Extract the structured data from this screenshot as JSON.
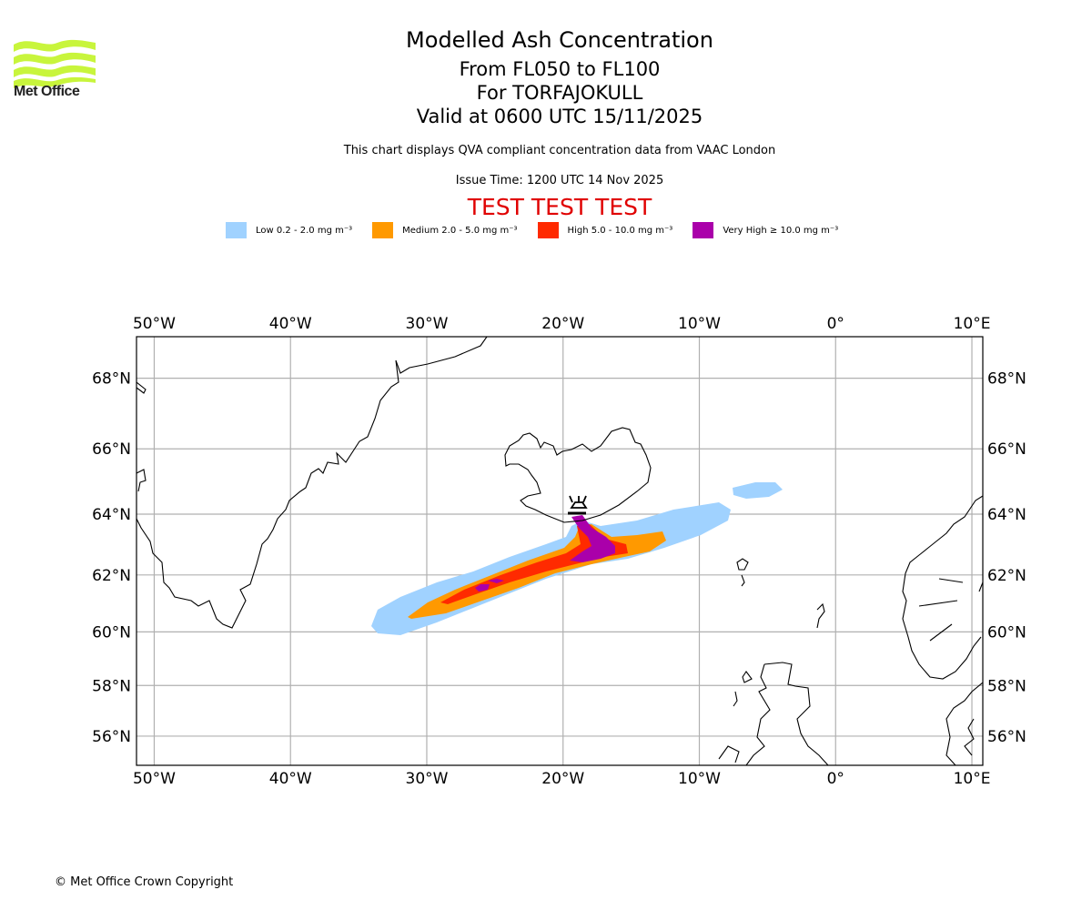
{
  "logo": {
    "text": "Met Office",
    "color": "#c8f53c"
  },
  "title": {
    "line1": "Modelled Ash Concentration",
    "line2": "From FL050 to FL100",
    "line3": "For TORFAJOKULL",
    "line4": "Valid at 0600 UTC 15/11/2025"
  },
  "subtitle": {
    "description": "This chart displays QVA compliant concentration data from VAAC London",
    "issue_time": "Issue Time: 1200 UTC 14 Nov 2025",
    "test_banner": "TEST TEST TEST",
    "test_color": "#e00000"
  },
  "legend": [
    {
      "label": "Low 0.2 - 2.0 mg m⁻³",
      "color": "#a0d2ff"
    },
    {
      "label": "Medium 2.0 - 5.0 mg m⁻³",
      "color": "#ff9900"
    },
    {
      "label": "High 5.0 - 10.0 mg m⁻³",
      "color": "#ff2a00"
    },
    {
      "label": "Very High ≥ 10.0 mg m⁻³",
      "color": "#aa00aa"
    }
  ],
  "map": {
    "volcano_name": "TORFAJOKULL",
    "volcano_location": {
      "lon": -19.1,
      "lat": 63.9
    },
    "lon_ticks": [
      "50°W",
      "40°W",
      "30°W",
      "20°W",
      "10°W",
      "0°",
      "10°E"
    ],
    "lon_values": [
      -50,
      -40,
      -30,
      -20,
      -10,
      0,
      10
    ],
    "lat_ticks": [
      "68°N",
      "66°N",
      "64°N",
      "62°N",
      "60°N",
      "58°N",
      "56°N"
    ],
    "lat_values": [
      68,
      66,
      64,
      62,
      60,
      58,
      56
    ],
    "extent": {
      "lon_min": -51.3,
      "lon_max": 10.8,
      "lat_min": 54.8,
      "lat_max": 69.1
    }
  },
  "footer": {
    "copyright": "© Met Office Crown Copyright"
  }
}
